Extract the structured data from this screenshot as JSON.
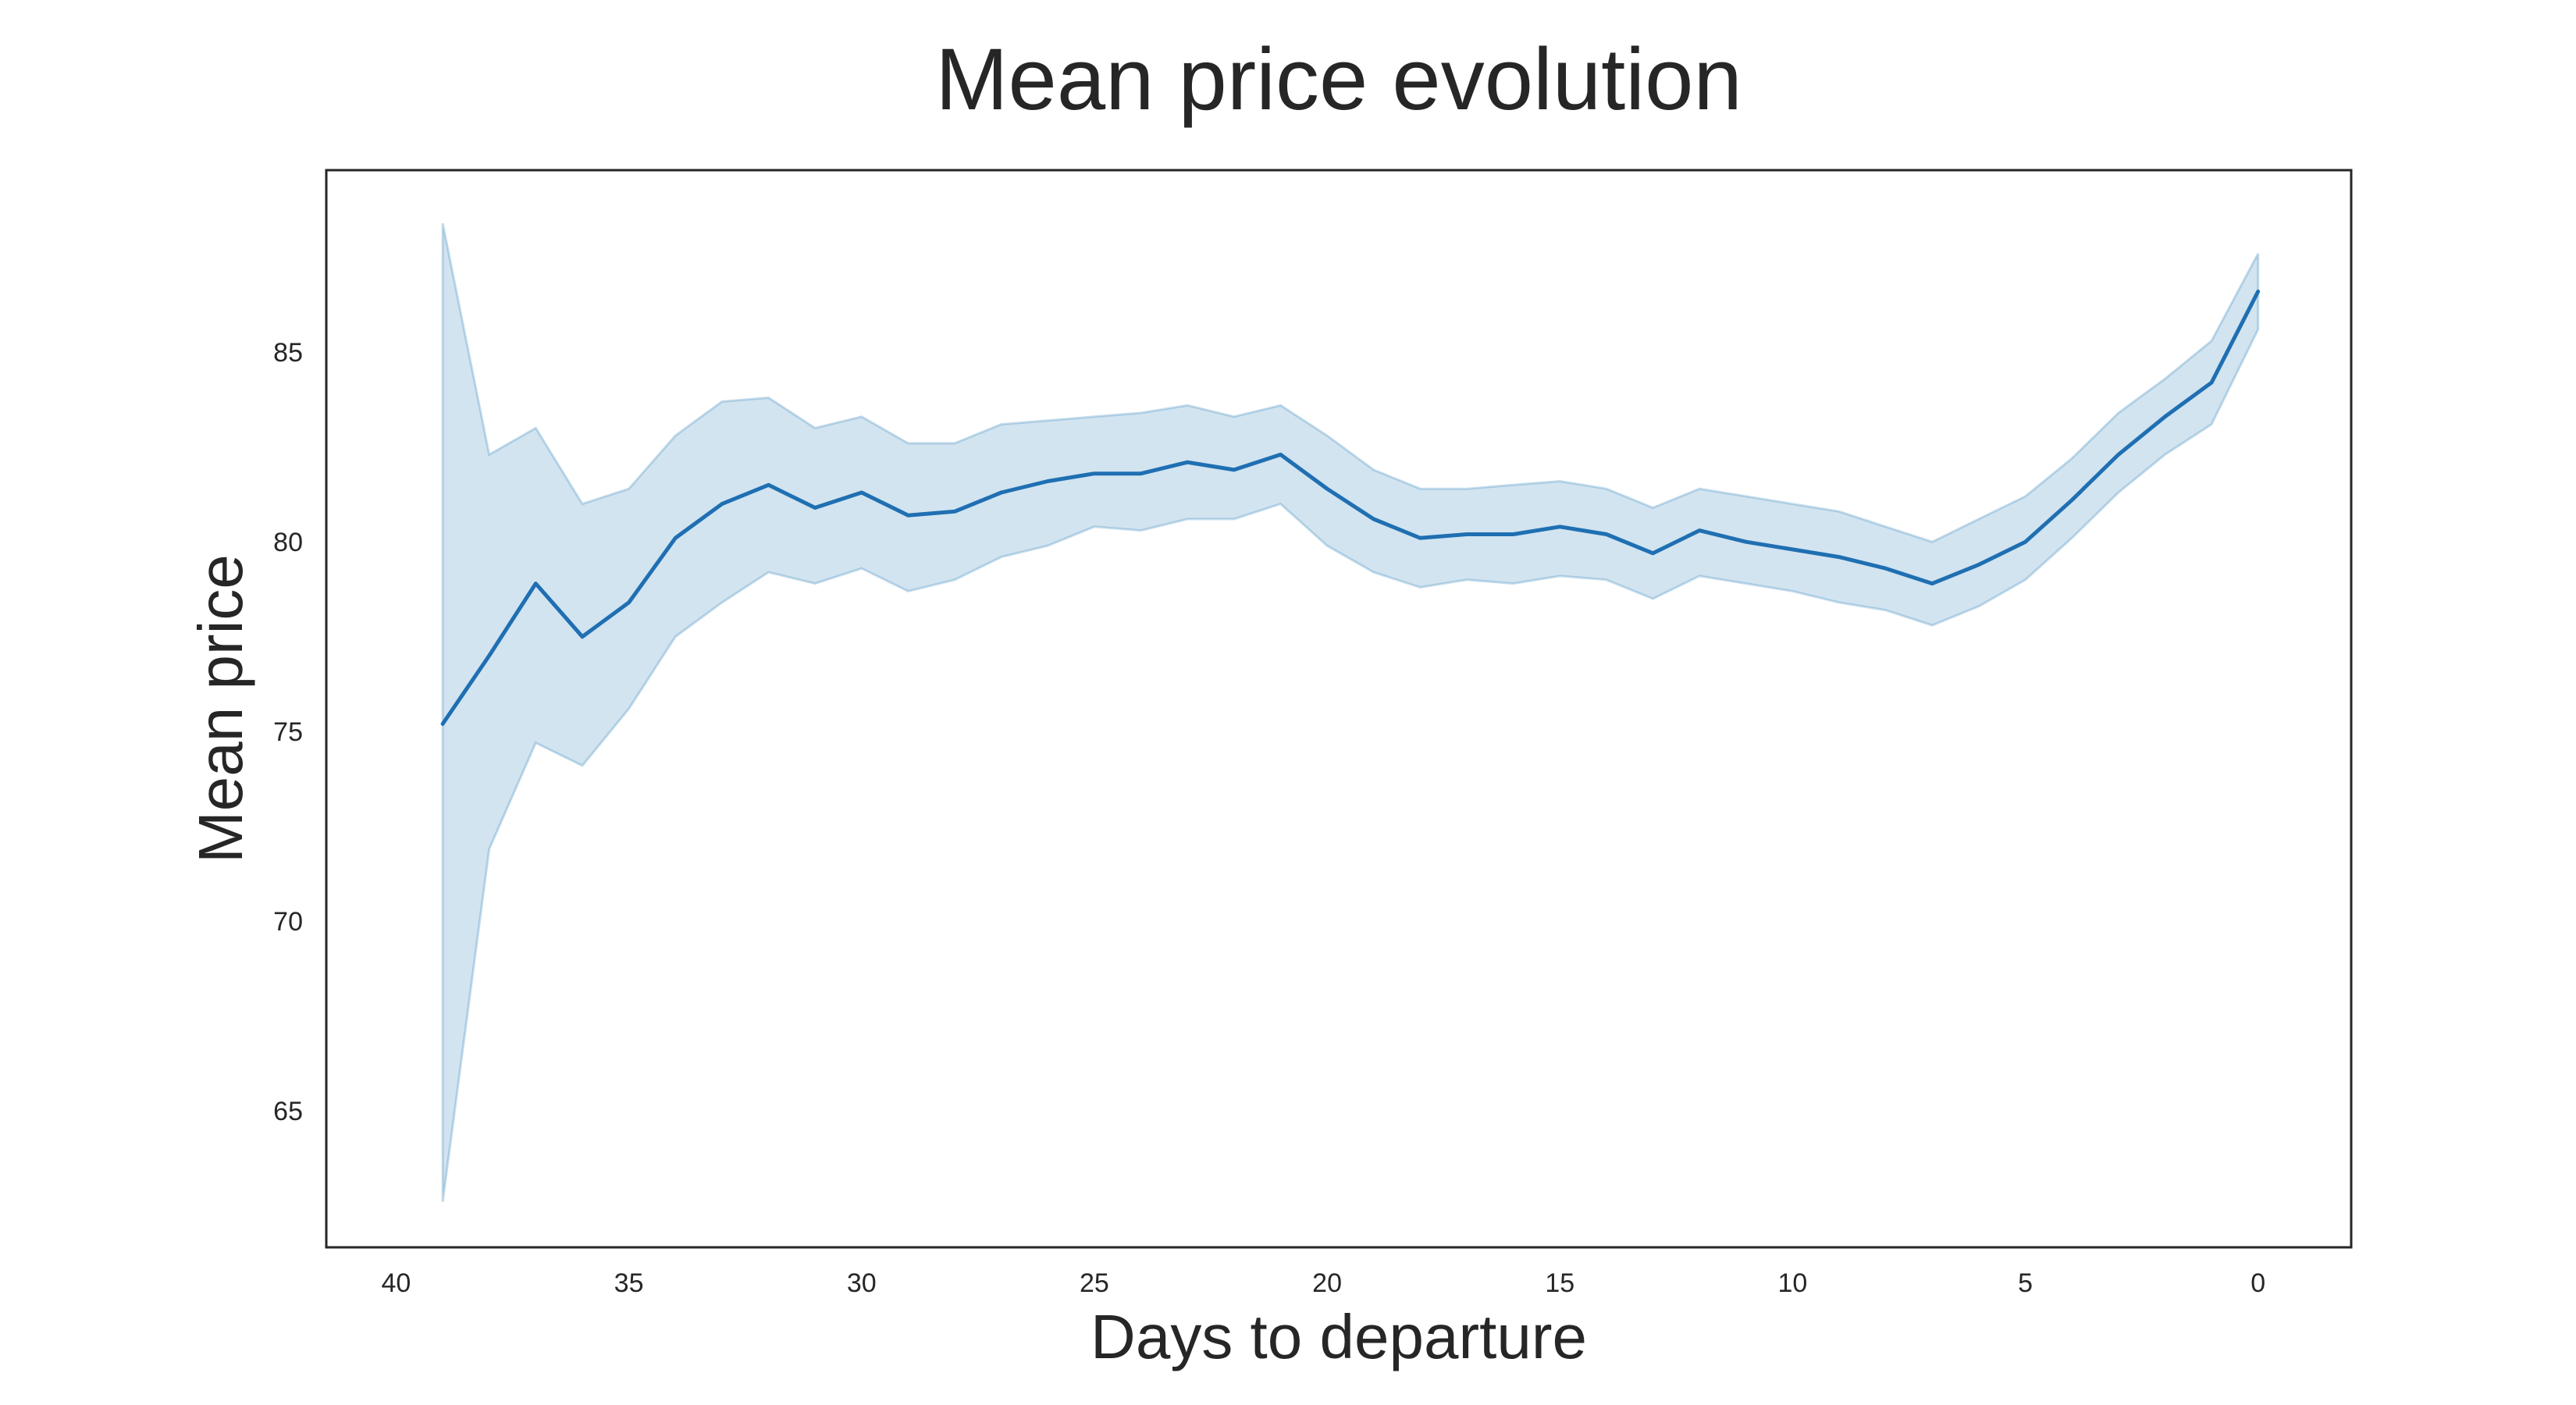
{
  "chart_data": {
    "type": "line",
    "title": "Mean price evolution",
    "xlabel": "Days to departure",
    "ylabel": "Mean price",
    "xlim": [
      41.5,
      -2
    ],
    "ylim": [
      61.4,
      89.8
    ],
    "x_ticks": [
      40,
      35,
      30,
      25,
      20,
      15,
      10,
      5,
      0
    ],
    "y_ticks": [
      65,
      70,
      75,
      80,
      85
    ],
    "grid": false,
    "colors": {
      "line": "#1f6fb2",
      "band": "#1f77b4"
    },
    "series": [
      {
        "name": "Mean price",
        "x": [
          39,
          38,
          37,
          36,
          35,
          34,
          33,
          32,
          31,
          30,
          29,
          28,
          27,
          26,
          25,
          24,
          23,
          22,
          21,
          20,
          19,
          18,
          17,
          16,
          15,
          14,
          13,
          12,
          11,
          10,
          9,
          8,
          7,
          6,
          5,
          4,
          3,
          2,
          1,
          0
        ],
        "values": [
          75.2,
          77.0,
          78.9,
          77.5,
          78.4,
          80.1,
          81.0,
          81.5,
          80.9,
          81.3,
          80.7,
          80.8,
          81.3,
          81.6,
          81.8,
          81.8,
          82.1,
          81.9,
          82.3,
          81.4,
          80.6,
          80.1,
          80.2,
          80.2,
          80.4,
          80.2,
          79.7,
          80.3,
          80.0,
          79.8,
          79.6,
          79.3,
          78.9,
          79.4,
          80.0,
          81.1,
          82.3,
          83.3,
          84.2,
          86.6
        ],
        "ci_lower": [
          62.6,
          71.9,
          74.7,
          74.1,
          75.6,
          77.5,
          78.4,
          79.2,
          78.9,
          79.3,
          78.7,
          79.0,
          79.6,
          79.9,
          80.4,
          80.3,
          80.6,
          80.6,
          81.0,
          79.9,
          79.2,
          78.8,
          79.0,
          78.9,
          79.1,
          79.0,
          78.5,
          79.1,
          78.9,
          78.7,
          78.4,
          78.2,
          77.8,
          78.3,
          79.0,
          80.1,
          81.3,
          82.3,
          83.1,
          85.6
        ],
        "ci_upper": [
          88.4,
          82.3,
          83.0,
          81.0,
          81.4,
          82.8,
          83.7,
          83.8,
          83.0,
          83.3,
          82.6,
          82.6,
          83.1,
          83.2,
          83.3,
          83.4,
          83.6,
          83.3,
          83.6,
          82.8,
          81.9,
          81.4,
          81.4,
          81.5,
          81.6,
          81.4,
          80.9,
          81.4,
          81.2,
          81.0,
          80.8,
          80.4,
          80.0,
          80.6,
          81.2,
          82.2,
          83.4,
          84.3,
          85.3,
          87.6
        ]
      }
    ]
  }
}
